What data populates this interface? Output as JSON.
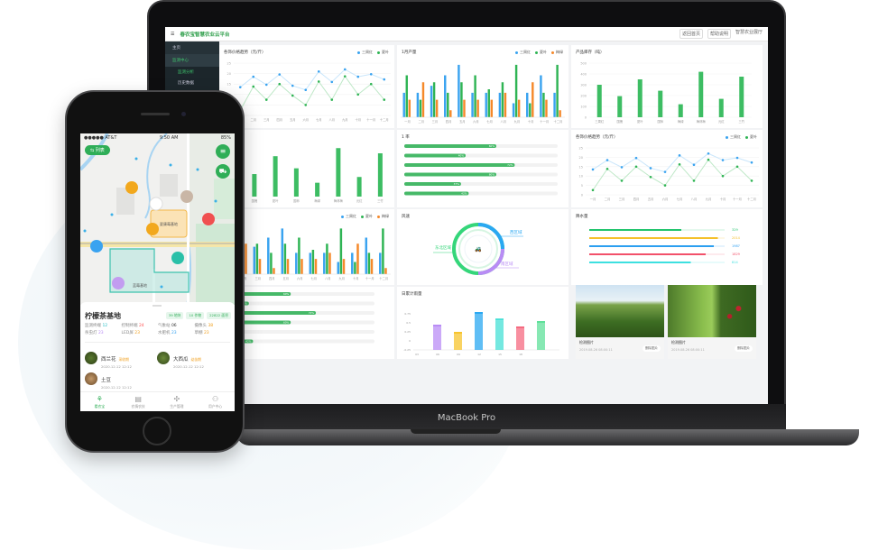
{
  "laptop": {
    "brand_label": "MacBook Pro",
    "header": {
      "title": "春农宝智慧农业云平台",
      "right_buttons": [
        "返回首页",
        "帮助说明"
      ],
      "user": "智慧农业展厅"
    },
    "sidebar": {
      "items": [
        "主页",
        "监测中心"
      ],
      "sub_items": [
        "监测分析",
        "历史数据",
        "多日分析"
      ]
    },
    "price_chart": {
      "title": "各饰价格趋势（元/斤）",
      "legend": [
        "三周红",
        "夏叶"
      ],
      "colors": [
        "#3aa3f0",
        "#2fb454"
      ],
      "categories": [
        "一月",
        "二月",
        "三月",
        "四月",
        "五月",
        "六月",
        "七月",
        "八月",
        "九月",
        "十月",
        "十一月",
        "十二月"
      ],
      "yticks": [
        0,
        5,
        10,
        15,
        20,
        25
      ],
      "series": [
        [
          13.5,
          18.5,
          14.7,
          19.6,
          14.2,
          12.2,
          21,
          16,
          22,
          18.5,
          19.7,
          17.2
        ],
        [
          2.5,
          13.8,
          7.5,
          15,
          9.5,
          5,
          16.2,
          7.5,
          18.7,
          10,
          15,
          7.5
        ]
      ]
    },
    "output_chart": {
      "title": "1月产量",
      "legend": [
        "三周红",
        "夏叶",
        "梅绿"
      ],
      "colors": [
        "#3aa3f0",
        "#2fb454",
        "#f5892a"
      ],
      "categories": [
        "一月",
        "二月",
        "三月",
        "四月",
        "五月",
        "六月",
        "七月",
        "八月",
        "九月",
        "十月",
        "十一月",
        "十二月"
      ],
      "series": [
        [
          3.5,
          3.5,
          4.5,
          6,
          7.5,
          3.5,
          3.5,
          3.5,
          2,
          3.5,
          6,
          3.5
        ],
        [
          6,
          2.5,
          5,
          3.5,
          5,
          6,
          4,
          5,
          7.5,
          2,
          3.5,
          7.5
        ],
        [
          2.5,
          5,
          2.5,
          1,
          2.5,
          2.5,
          2.5,
          3.5,
          2.5,
          5,
          2.5,
          1
        ]
      ]
    },
    "inventory_chart": {
      "title": "产品库存（吨）",
      "color": "#3dbd63",
      "categories": [
        "三周红",
        "国槐",
        "夏叶",
        "国柿",
        "梅绿",
        "梅林梅",
        "元红",
        "三竹"
      ],
      "values": [
        300,
        195,
        350,
        245,
        120,
        420,
        170,
        375
      ],
      "yticks": [
        0,
        100,
        200,
        300,
        400,
        500
      ]
    },
    "rate_chart": {
      "title": "1 率",
      "values": [
        60,
        40,
        72,
        60,
        37,
        42
      ],
      "color": "#46b968"
    },
    "wind": {
      "title": "风速",
      "regions": [
        "西区域",
        "东北区域",
        "南区域"
      ]
    },
    "rain": {
      "title": "降水量",
      "values": [
        "329",
        "2014",
        "1987",
        "1829",
        "814"
      ],
      "fills": [
        0.68,
        0.95,
        0.92,
        0.86,
        0.75
      ],
      "colors": [
        "#22c46e",
        "#f5c02a",
        "#2c9ff0",
        "#f2506a",
        "#3de0e0"
      ]
    },
    "daily_rain": {
      "title": "日累计雨量",
      "yticks": [
        "0.75",
        "0.5",
        "0.25",
        "0",
        "-0.25"
      ],
      "xticks": [
        "03",
        "06",
        "09",
        "12",
        "15",
        "18"
      ],
      "values": [
        0.4,
        0.2,
        0.75,
        0.57,
        0.35,
        0.5
      ],
      "colors": [
        "#b98cf5",
        "#f7c42d",
        "#2aa8f2",
        "#45e0d6",
        "#f56a80",
        "#5fe09a"
      ]
    },
    "photos": [
      {
        "caption": "检测图片",
        "time": "2019.08.26  08:00:11",
        "button": "删除图片"
      },
      {
        "caption": "检测图片",
        "time": "2019.08.26  08:00:11",
        "button": "删除图片"
      }
    ]
  },
  "phone": {
    "status": {
      "carrier": "●●●●● AT&T",
      "time": "9:50 AM",
      "battery": "85%"
    },
    "list_button": "⇆ 列表",
    "map_labels": {
      "base1": "夏康莓基地",
      "base2": "蓝莓基地"
    },
    "card": {
      "title": "柠檬茶基地",
      "tags": [
        "39 地块",
        "10 作物",
        "22822 面积"
      ],
      "stats": [
        {
          "label": "监测终端",
          "value": "12",
          "color": "#2ac0c8"
        },
        {
          "label": "控制终端",
          "value": "24",
          "color": "#f55"
        },
        {
          "label": "气象站",
          "value": "06",
          "color": "#333"
        },
        {
          "label": "摄像头",
          "value": "38",
          "color": "#f0a020"
        },
        {
          "label": "杀虫灯",
          "value": "23",
          "color": "#b98cf5"
        },
        {
          "label": "LED屏",
          "value": "23",
          "color": "#f0a020"
        },
        {
          "label": "水肥机",
          "value": "23",
          "color": "#3aa3f0"
        },
        {
          "label": "草棚",
          "value": "23",
          "color": "#f0a020"
        }
      ],
      "crops": [
        {
          "name": "西兰花",
          "stage": "采收期",
          "time": "2020.12.12   12:12"
        },
        {
          "name": "大西瓜",
          "stage": "幼苗期",
          "time": "2020.12.12   12:12"
        },
        {
          "name": "土豆",
          "stage": "",
          "time": "2020.12.12   12:12"
        }
      ]
    },
    "tabs": [
      "看农宝",
      "农情农技",
      "生产管理",
      "用户中心"
    ]
  }
}
